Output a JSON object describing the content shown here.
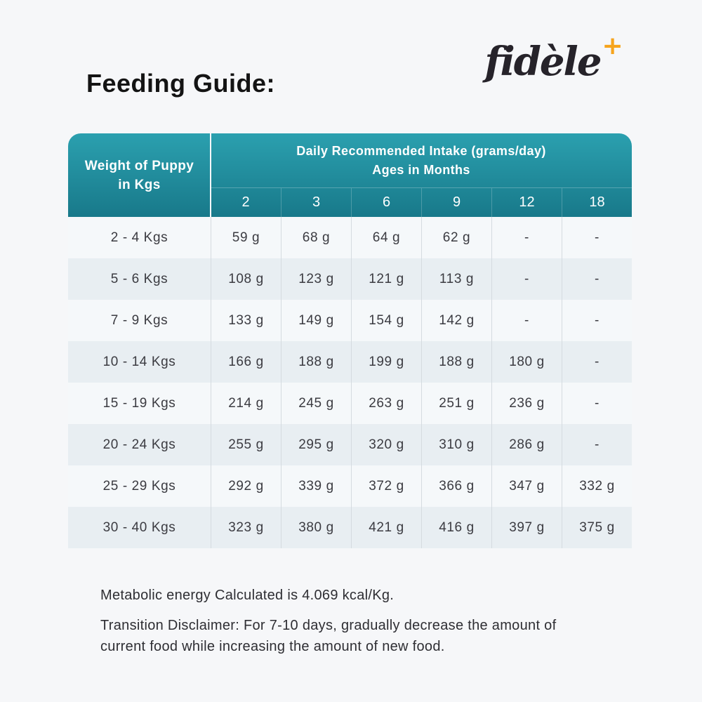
{
  "page": {
    "title": "Feeding Guide:"
  },
  "brand": {
    "name": "fidèle",
    "plus": "+"
  },
  "table": {
    "weight_header_line1": "Weight of Puppy",
    "weight_header_line2": "in Kgs",
    "intake_header_line1": "Daily Recommended Intake (grams/day)",
    "intake_header_line2": "Ages in Months",
    "months": [
      "2",
      "3",
      "6",
      "9",
      "12",
      "18"
    ],
    "rows": [
      {
        "weight": "2 - 4 Kgs",
        "values": [
          "59 g",
          "68 g",
          "64 g",
          "62 g",
          "-",
          "-"
        ]
      },
      {
        "weight": "5 - 6 Kgs",
        "values": [
          "108 g",
          "123 g",
          "121 g",
          "113 g",
          "-",
          "-"
        ]
      },
      {
        "weight": "7 - 9 Kgs",
        "values": [
          "133 g",
          "149 g",
          "154 g",
          "142 g",
          "-",
          "-"
        ]
      },
      {
        "weight": "10 - 14 Kgs",
        "values": [
          "166 g",
          "188 g",
          "199 g",
          "188 g",
          "180 g",
          "-"
        ]
      },
      {
        "weight": "15 - 19 Kgs",
        "values": [
          "214 g",
          "245 g",
          "263 g",
          "251 g",
          "236 g",
          "-"
        ]
      },
      {
        "weight": "20 - 24 Kgs",
        "values": [
          "255 g",
          "295 g",
          "320 g",
          "310 g",
          "286 g",
          "-"
        ]
      },
      {
        "weight": "25 - 29 Kgs",
        "values": [
          "292 g",
          "339 g",
          "372 g",
          "366 g",
          "347 g",
          "332 g"
        ]
      },
      {
        "weight": "30 - 40 Kgs",
        "values": [
          "323 g",
          "380 g",
          "421 g",
          "416 g",
          "397 g",
          "375 g"
        ]
      }
    ]
  },
  "notes": {
    "metabolic": "Metabolic energy Calculated is 4.069 kcal/Kg.",
    "transition": "Transition Disclaimer: For 7-10 days, gradually decrease the amount of current food while increasing the amount of new food."
  },
  "colors": {
    "header_gradient_top": "#2BA0AF",
    "header_gradient_bottom": "#18798A",
    "row_odd": "#F5F8FA",
    "row_even": "#E8EEF2",
    "page_background": "#F6F7F9",
    "column_divider": "#D5DBE0",
    "body_text": "#3B3B41",
    "brand_plus": "#F6A41D"
  }
}
